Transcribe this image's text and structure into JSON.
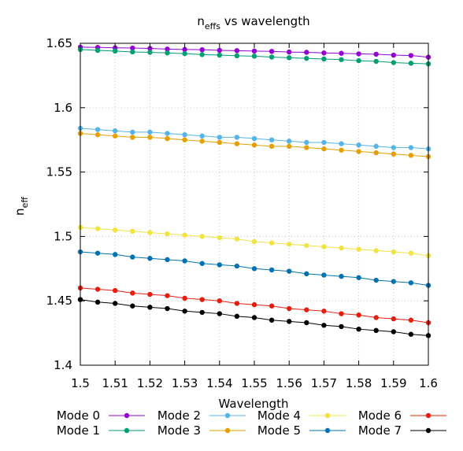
{
  "chart_data": {
    "type": "line",
    "title_main": "n",
    "title_sub": "effs",
    "title_rest": " vs wavelength",
    "xlabel": "Wavelength",
    "ylabel_main": "n",
    "ylabel_sub": "eff",
    "xlim": [
      1.5,
      1.6
    ],
    "ylim": [
      1.4,
      1.65
    ],
    "xticks": [
      "1.5",
      "1.51",
      "1.52",
      "1.53",
      "1.54",
      "1.55",
      "1.56",
      "1.57",
      "1.58",
      "1.59",
      "1.6"
    ],
    "yticks": [
      "1.4",
      "1.45",
      "1.5",
      "1.55",
      "1.6",
      "1.65"
    ],
    "grid": true,
    "legend_position": "bottom",
    "x": [
      1.5,
      1.505,
      1.51,
      1.515,
      1.52,
      1.525,
      1.53,
      1.535,
      1.54,
      1.545,
      1.55,
      1.555,
      1.56,
      1.565,
      1.57,
      1.575,
      1.58,
      1.585,
      1.59,
      1.595,
      1.6
    ],
    "series": [
      {
        "name": "Mode 0",
        "color": "#9400d3",
        "values": [
          1.647,
          1.6468,
          1.6465,
          1.6463,
          1.646,
          1.6455,
          1.6452,
          1.645,
          1.6445,
          1.6443,
          1.644,
          1.6437,
          1.6432,
          1.643,
          1.6425,
          1.6422,
          1.6418,
          1.6415,
          1.6408,
          1.6405,
          1.6392
        ]
      },
      {
        "name": "Mode 1",
        "color": "#009e73",
        "values": [
          1.6452,
          1.6445,
          1.644,
          1.6433,
          1.643,
          1.6425,
          1.642,
          1.6412,
          1.6408,
          1.6403,
          1.64,
          1.6393,
          1.6388,
          1.6383,
          1.6378,
          1.6373,
          1.6365,
          1.636,
          1.635,
          1.6345,
          1.634
        ]
      },
      {
        "name": "Mode 2",
        "color": "#56b4e9",
        "values": [
          1.584,
          1.583,
          1.582,
          1.581,
          1.581,
          1.58,
          1.579,
          1.578,
          1.577,
          1.577,
          1.576,
          1.575,
          1.574,
          1.573,
          1.573,
          1.572,
          1.571,
          1.57,
          1.569,
          1.569,
          1.568
        ]
      },
      {
        "name": "Mode 3",
        "color": "#e69f00",
        "values": [
          1.58,
          1.579,
          1.578,
          1.577,
          1.577,
          1.576,
          1.575,
          1.574,
          1.573,
          1.572,
          1.571,
          1.57,
          1.57,
          1.569,
          1.568,
          1.567,
          1.566,
          1.565,
          1.564,
          1.563,
          1.562
        ]
      },
      {
        "name": "Mode 4",
        "color": "#f0e442",
        "values": [
          1.507,
          1.506,
          1.505,
          1.504,
          1.503,
          1.502,
          1.501,
          1.5,
          1.499,
          1.498,
          1.496,
          1.495,
          1.494,
          1.493,
          1.492,
          1.491,
          1.49,
          1.489,
          1.488,
          1.487,
          1.485
        ]
      },
      {
        "name": "Mode 5",
        "color": "#0072b2",
        "values": [
          1.488,
          1.487,
          1.486,
          1.484,
          1.483,
          1.482,
          1.481,
          1.479,
          1.478,
          1.477,
          1.475,
          1.474,
          1.473,
          1.471,
          1.47,
          1.469,
          1.468,
          1.466,
          1.465,
          1.464,
          1.462
        ]
      },
      {
        "name": "Mode 6",
        "color": "#e51e10",
        "values": [
          1.46,
          1.459,
          1.458,
          1.456,
          1.455,
          1.454,
          1.452,
          1.451,
          1.45,
          1.448,
          1.447,
          1.446,
          1.444,
          1.443,
          1.442,
          1.44,
          1.439,
          1.437,
          1.436,
          1.435,
          1.433
        ]
      },
      {
        "name": "Mode 7",
        "color": "#000000",
        "values": [
          1.451,
          1.449,
          1.448,
          1.446,
          1.445,
          1.444,
          1.442,
          1.441,
          1.44,
          1.438,
          1.437,
          1.435,
          1.434,
          1.433,
          1.431,
          1.43,
          1.428,
          1.427,
          1.426,
          1.424,
          1.423
        ]
      }
    ]
  }
}
